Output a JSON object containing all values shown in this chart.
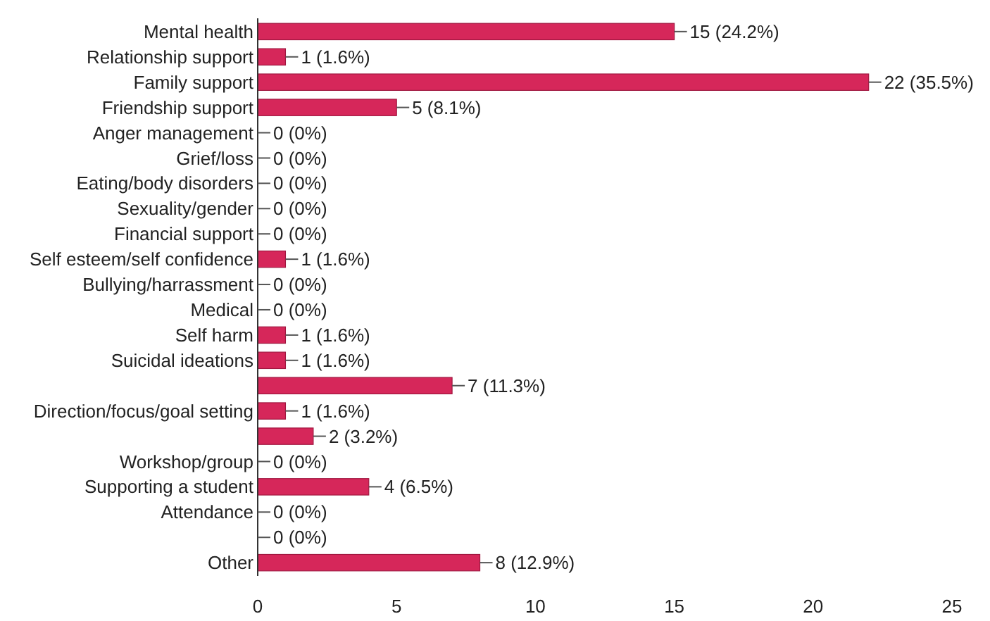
{
  "chart_data": {
    "type": "bar",
    "orientation": "horizontal",
    "categories": [
      "Mental health",
      "Relationship support",
      "Family support",
      "Friendship support",
      "Anger management",
      "Grief/loss",
      "Eating/body disorders",
      "Sexuality/gender",
      "Financial support",
      "Self esteem/self confidence",
      "Bullying/harrassment",
      "Medical",
      "Self harm",
      "Suicidal ideations",
      null,
      "Direction/focus/goal setting",
      null,
      "Workshop/group",
      "Supporting a student",
      "Attendance",
      null,
      "Other"
    ],
    "values": [
      15,
      1,
      22,
      5,
      0,
      0,
      0,
      0,
      0,
      1,
      0,
      0,
      1,
      1,
      7,
      1,
      2,
      0,
      4,
      0,
      0,
      8
    ],
    "value_labels": [
      "15 (24.2%)",
      "1 (1.6%)",
      "22 (35.5%)",
      "5 (8.1%)",
      "0 (0%)",
      "0 (0%)",
      "0 (0%)",
      "0 (0%)",
      "0 (0%)",
      "1 (1.6%)",
      "0 (0%)",
      "0 (0%)",
      "1 (1.6%)",
      "1 (1.6%)",
      "7 (11.3%)",
      "1 (1.6%)",
      "2 (3.2%)",
      "0 (0%)",
      "4 (6.5%)",
      "0 (0%)",
      "0 (0%)",
      "8 (12.9%)"
    ],
    "color": "#d6275a",
    "xlim": [
      0,
      25
    ],
    "xticks": [
      0,
      5,
      10,
      15,
      20,
      25
    ],
    "grid": false
  }
}
